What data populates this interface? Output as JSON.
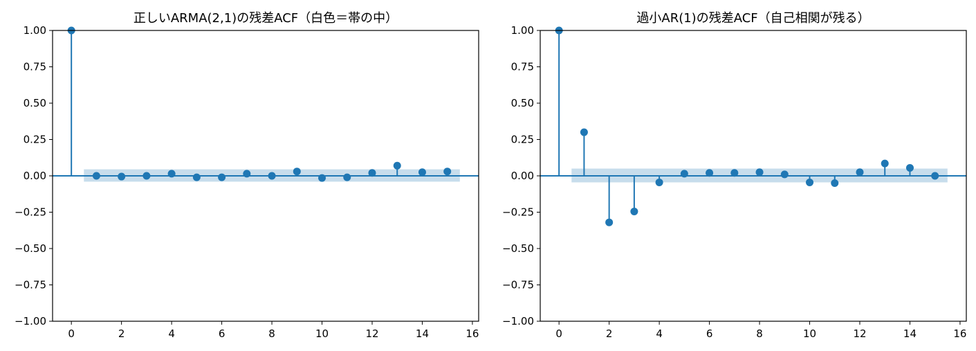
{
  "chart_data": [
    {
      "type": "stem",
      "title": "正しいARMA(2,1)の残差ACF（白色＝帯の中）",
      "xlabel": "",
      "ylabel": "",
      "xlim": [
        -0.75,
        16.25
      ],
      "ylim": [
        -1.0,
        1.0
      ],
      "xticks": [
        0,
        2,
        4,
        6,
        8,
        10,
        12,
        14,
        16
      ],
      "yticks": [
        1.0,
        0.75,
        0.5,
        0.25,
        0.0,
        -0.25,
        -0.5,
        -0.75,
        -1.0
      ],
      "ytick_labels": [
        "1.00",
        "0.75",
        "0.50",
        "0.25",
        "0.00",
        "−0.25",
        "−0.50",
        "−0.75",
        "−1.00"
      ],
      "lags": [
        0,
        1,
        2,
        3,
        4,
        5,
        6,
        7,
        8,
        9,
        10,
        11,
        12,
        13,
        14,
        15
      ],
      "values": [
        1.0,
        0.0,
        -0.005,
        0.0,
        0.015,
        -0.01,
        -0.01,
        0.015,
        0.0,
        0.03,
        -0.015,
        -0.01,
        0.02,
        0.07,
        0.025,
        0.03
      ],
      "confidence_band": {
        "from_lag": 0.5,
        "to_lag": 15.5,
        "lower": -0.04,
        "upper": 0.045
      },
      "grid": false
    },
    {
      "type": "stem",
      "title": "過小AR(1)の残差ACF（自己相関が残る）",
      "xlabel": "",
      "ylabel": "",
      "xlim": [
        -0.75,
        16.25
      ],
      "ylim": [
        -1.0,
        1.0
      ],
      "xticks": [
        0,
        2,
        4,
        6,
        8,
        10,
        12,
        14,
        16
      ],
      "yticks": [
        1.0,
        0.75,
        0.5,
        0.25,
        0.0,
        -0.25,
        -0.5,
        -0.75,
        -1.0
      ],
      "ytick_labels": [
        "1.00",
        "0.75",
        "0.50",
        "0.25",
        "0.00",
        "−0.25",
        "−0.50",
        "−0.75",
        "−1.00"
      ],
      "lags": [
        0,
        1,
        2,
        3,
        4,
        5,
        6,
        7,
        8,
        9,
        10,
        11,
        12,
        13,
        14,
        15
      ],
      "values": [
        1.0,
        0.3,
        -0.32,
        -0.245,
        -0.045,
        0.015,
        0.02,
        0.02,
        0.025,
        0.01,
        -0.045,
        -0.05,
        0.025,
        0.085,
        0.055,
        0.0
      ],
      "confidence_band": {
        "from_lag": 0.5,
        "to_lag": 15.5,
        "lower": -0.045,
        "upper": 0.05
      },
      "grid": false
    }
  ],
  "colors": {
    "stem": "#1f77b4",
    "band": "#1f77b4",
    "axes": "#000000"
  }
}
